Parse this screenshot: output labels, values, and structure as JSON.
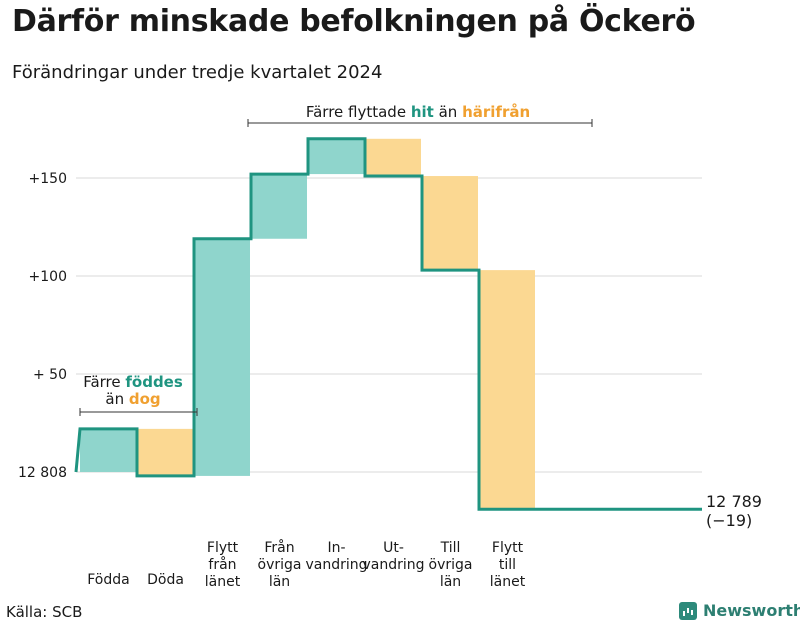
{
  "title": "Därför minskade befolkningen på Öckerö",
  "subtitle": "Förändringar under tredje kvartalet 2024",
  "source": "Källa: SCB",
  "brand": "Newsworthy",
  "colors": {
    "increase": "#8fd5cc",
    "decrease": "#fbd892",
    "line": "#1f9480",
    "grid": "#d9d9d9",
    "hit": "#1f9480",
    "harifran": "#f0a030"
  },
  "chart_data": {
    "type": "waterfall",
    "start": {
      "label": "12 808",
      "value": 12808
    },
    "end": {
      "label": "12 789",
      "note": "(−19)",
      "value": 12789
    },
    "ytick_labels": [
      "+150",
      "+100",
      "+ 50",
      "12 808"
    ],
    "ytick_values": [
      150,
      100,
      50,
      0
    ],
    "categories": [
      {
        "lines": [
          "Födda"
        ],
        "value": 22
      },
      {
        "lines": [
          "Döda"
        ],
        "value": -24
      },
      {
        "lines": [
          "Flytt",
          "från",
          "länet"
        ],
        "value": 121
      },
      {
        "lines": [
          "Från",
          "övriga",
          "län"
        ],
        "value": 33
      },
      {
        "lines": [
          "In-",
          "vandring"
        ],
        "value": 18
      },
      {
        "lines": [
          "Ut-",
          "vandring"
        ],
        "value": -19
      },
      {
        "lines": [
          "Till",
          "övriga",
          "län"
        ],
        "value": -48
      },
      {
        "lines": [
          "Flytt",
          "till",
          "länet"
        ],
        "value": -122
      }
    ],
    "annotations": {
      "births": {
        "prefix": "Färre",
        "hl1": "föddes",
        "mid": "än",
        "hl2": "dog"
      },
      "migration": {
        "prefix": "Färre flyttade",
        "hl1": "hit",
        "mid": "än",
        "hl2": "härifrån"
      }
    }
  }
}
